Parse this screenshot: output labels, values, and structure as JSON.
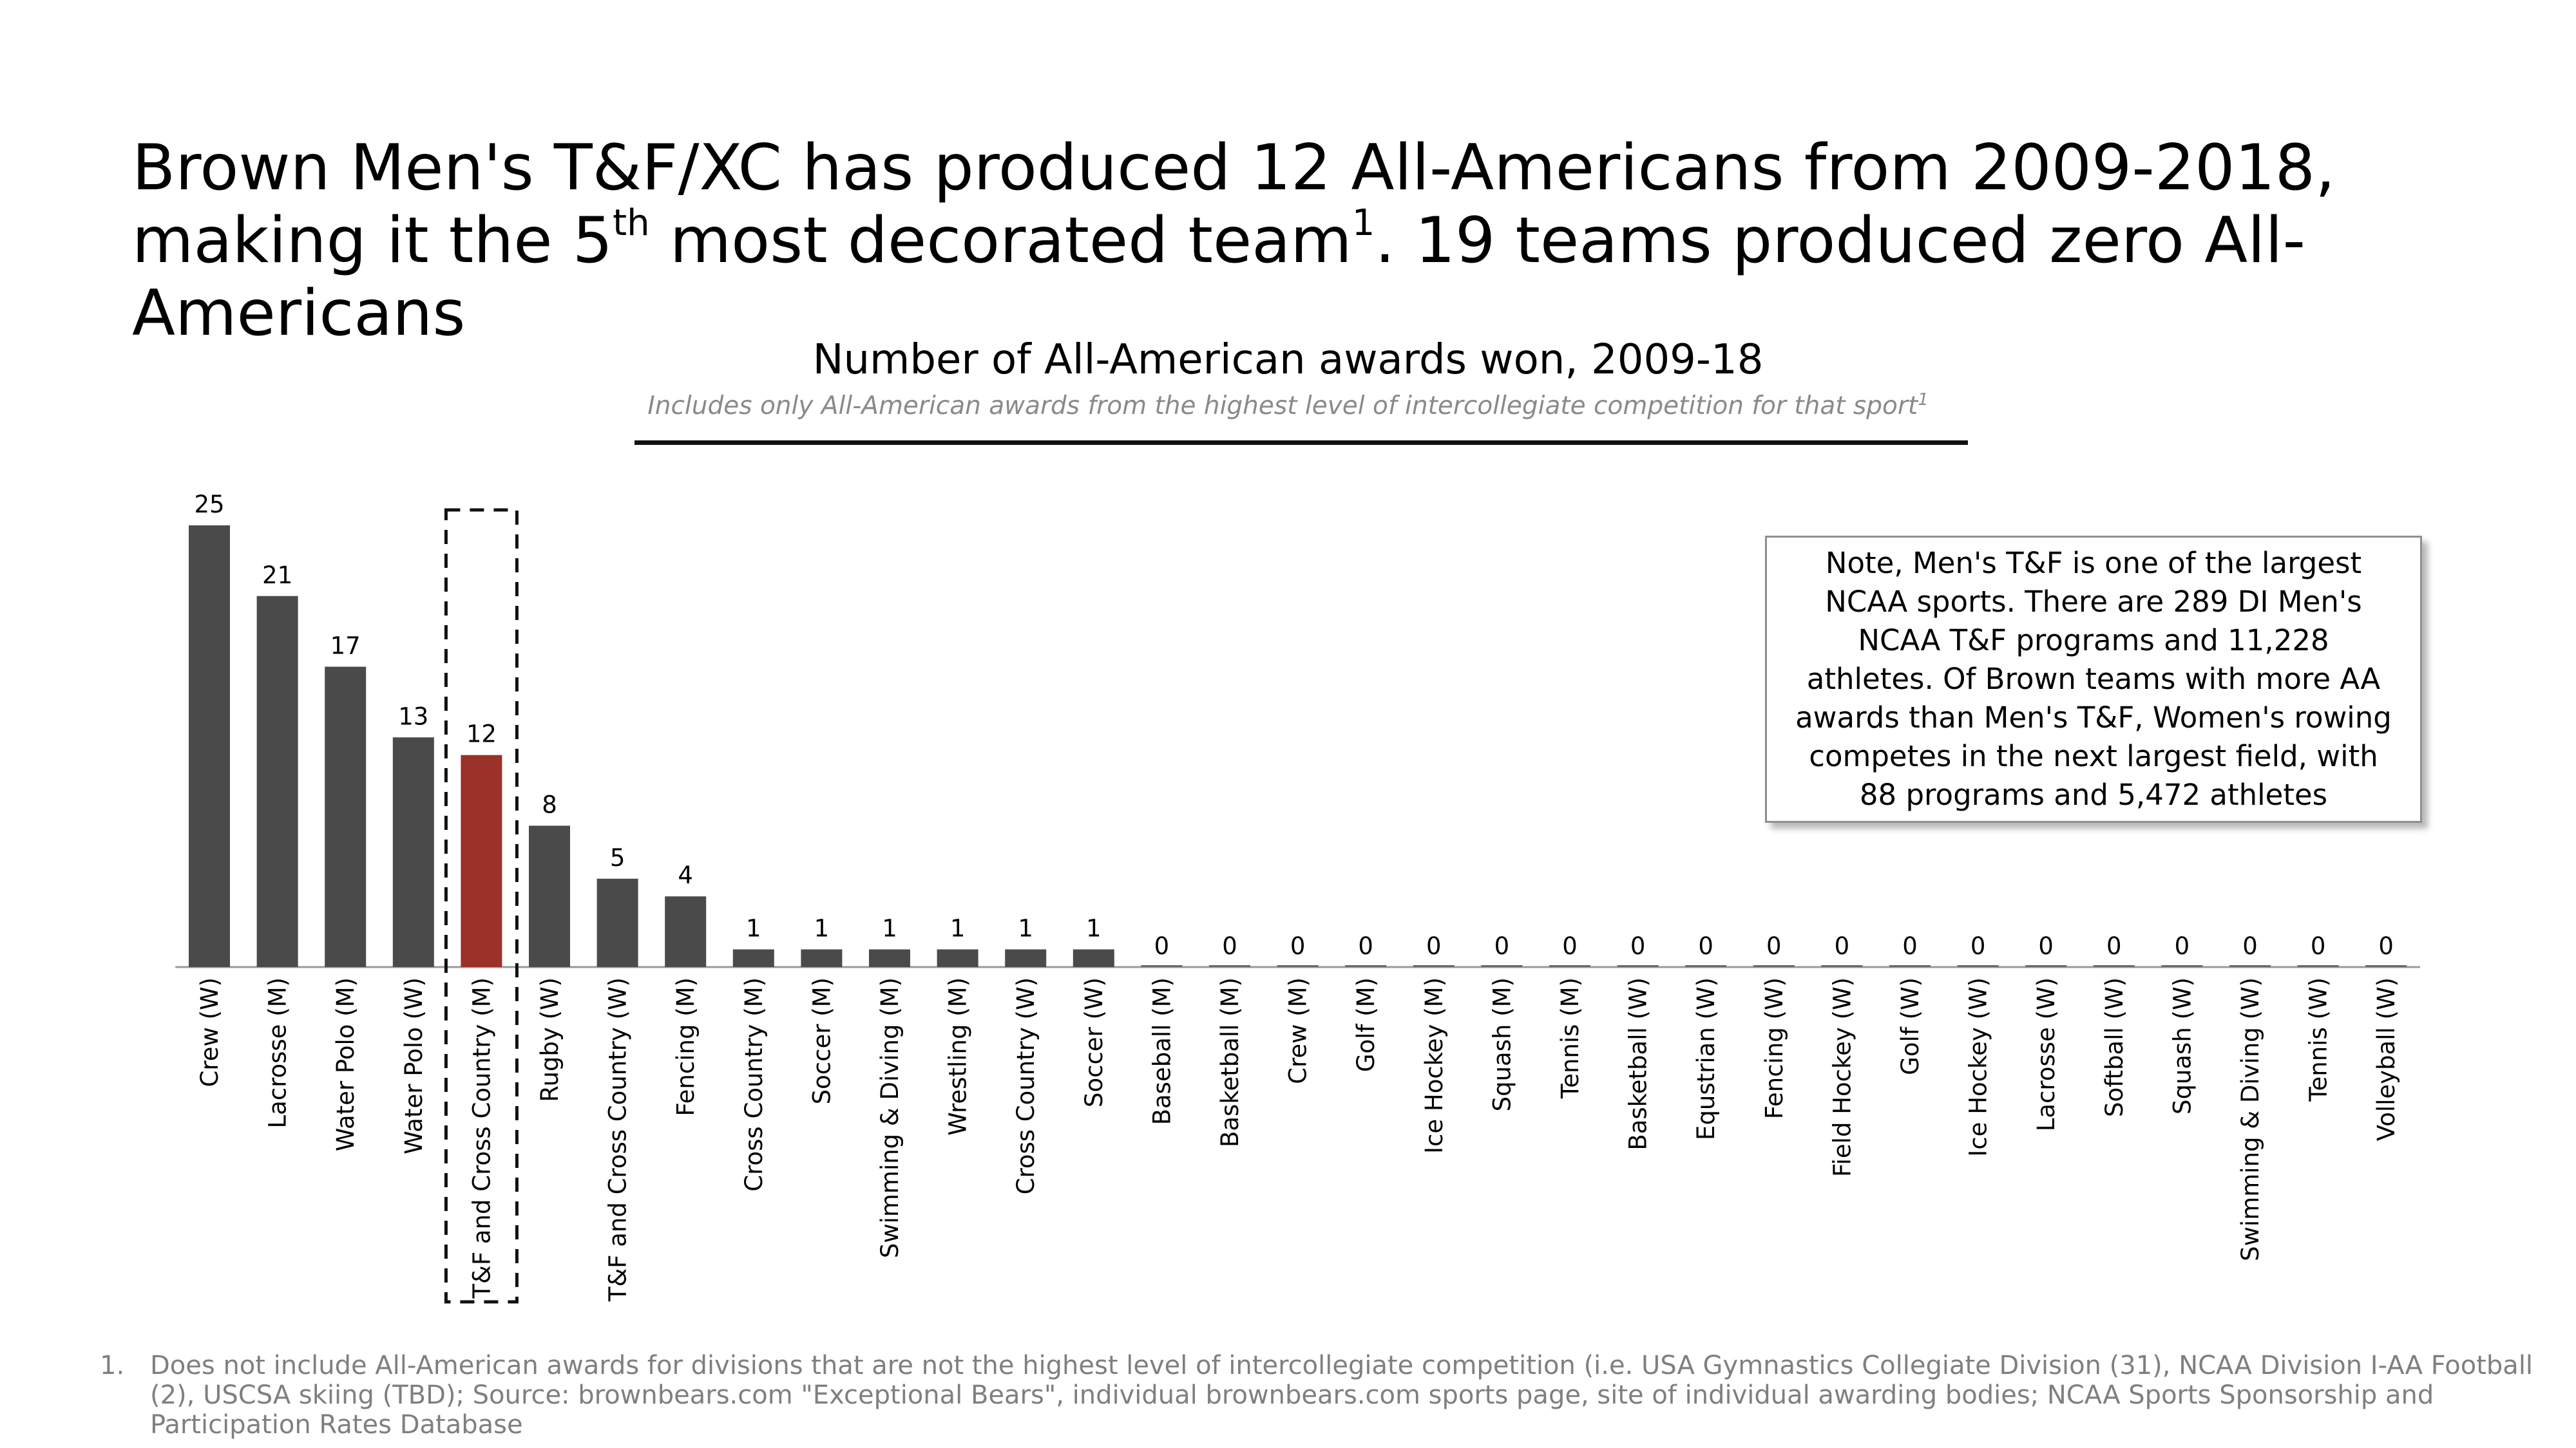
{
  "headline": {
    "part1": "Brown Men's T&F/XC has produced 12 All-Americans from 2009-2018, making it the 5",
    "sup1": "th",
    "part2": " most decorated team",
    "sup2": "1",
    "part3": ". 19 teams produced zero All-Americans"
  },
  "note": "Note, Men's T&F is one of the largest NCAA sports. There are 289 DI Men's NCAA T&F programs and 11,228 athletes. Of Brown teams with more AA awards than Men's T&F, Women's rowing competes in the next largest field, with 88 programs and 5,472 athletes",
  "footnote": {
    "number": "1.",
    "text": "Does not include All-American awards for divisions that are not the highest level of intercollegiate competition (i.e. USA Gymnastics Collegiate Division (31), NCAA Division I-AA Football (2), USCSA skiing (TBD); Source: brownbears.com \"Exceptional Bears\", individual brownbears.com sports page, site of individual awarding bodies; NCAA Sports Sponsorship and Participation Rates Database"
  },
  "chart_data": {
    "type": "bar",
    "title": "Number of All-American awards won, 2009-18",
    "subtitle": "Includes only All-American awards from the highest level of intercollegiate competition for that sport",
    "subtitle_sup": "1",
    "categories": [
      "Crew (W)",
      "Lacrosse (M)",
      "Water Polo (M)",
      "Water Polo (W)",
      "T&F and Cross Country (M)",
      "Rugby (W)",
      "T&F and Cross Country (W)",
      "Fencing (M)",
      "Cross Country (M)",
      "Soccer (M)",
      "Swimming & Diving (M)",
      "Wrestling (M)",
      "Cross Country (W)",
      "Soccer (W)",
      "Baseball (M)",
      "Basketball (M)",
      "Crew (M)",
      "Golf (M)",
      "Ice Hockey (M)",
      "Squash (M)",
      "Tennis (M)",
      "Basketball (W)",
      "Equstrian (W)",
      "Fencing (W)",
      "Field Hockey (W)",
      "Golf (W)",
      "Ice Hockey (W)",
      "Lacrosse (W)",
      "Softball (W)",
      "Squash (W)",
      "Swimming & Diving (W)",
      "Tennis (W)",
      "Volleyball (W)"
    ],
    "values": [
      25,
      21,
      17,
      13,
      12,
      8,
      5,
      4,
      1,
      1,
      1,
      1,
      1,
      1,
      0,
      0,
      0,
      0,
      0,
      0,
      0,
      0,
      0,
      0,
      0,
      0,
      0,
      0,
      0,
      0,
      0,
      0,
      0
    ],
    "highlight_category": "T&F and Cross Country (M)",
    "colors": {
      "bar": "#4a4a4a",
      "highlight": "#9b3128"
    },
    "ylim": [
      0,
      25
    ],
    "grid": false,
    "legend": false
  }
}
